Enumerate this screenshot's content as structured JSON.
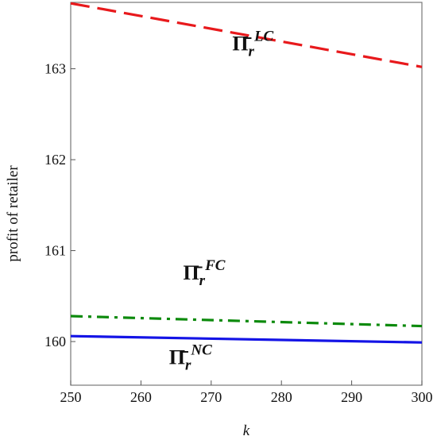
{
  "chart_data": {
    "type": "line",
    "xlabel": "k",
    "ylabel": "profit of retailer",
    "xlim": [
      250,
      300
    ],
    "ylim": [
      159.52,
      163.73
    ],
    "xticks": [
      250,
      260,
      270,
      280,
      290,
      300
    ],
    "yticks": [
      160,
      161,
      162,
      163
    ],
    "grid": false,
    "series": [
      {
        "name": "Π̄_r^LC",
        "label_main": "Π̄",
        "label_sub": "r",
        "label_sup": "LC",
        "label_x": 273,
        "label_y": 163.2,
        "color": "#e8191c",
        "dash": "dash",
        "x": [
          250,
          300
        ],
        "y": [
          163.72,
          163.02
        ]
      },
      {
        "name": "Π̄_r^FC",
        "label_main": "Π̄",
        "label_sub": "r",
        "label_sup": "FC",
        "label_x": 266,
        "label_y": 160.68,
        "color": "#0c8a0c",
        "dash": "dashdot",
        "x": [
          250,
          300
        ],
        "y": [
          160.28,
          160.17
        ]
      },
      {
        "name": "Π̄_r^NC",
        "label_main": "Π̄",
        "label_sub": "r",
        "label_sup": "NC",
        "label_x": 264,
        "label_y": 159.75,
        "color": "#1414e6",
        "dash": "solid",
        "x": [
          250,
          300
        ],
        "y": [
          160.06,
          159.99
        ]
      }
    ]
  }
}
